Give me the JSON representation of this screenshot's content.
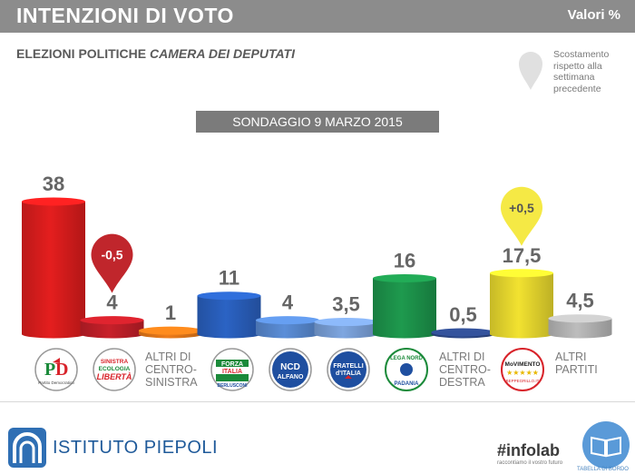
{
  "header": {
    "title": "INTENZIONI DI VOTO",
    "unit_label": "Valori %"
  },
  "subtitle": {
    "main": "ELEZIONI POLITICHE",
    "emphasis": "CAMERA DEI DEPUTATI"
  },
  "legend": {
    "pin_text": "Scostamento rispetto alla settimana precedente",
    "pin_color": "#e0e0e0"
  },
  "poll_date": "SONDAGGIO 9 MARZO 2015",
  "chart_data": {
    "type": "bar",
    "categories": [
      "PD",
      "SEL",
      "ALTRI DI CENTRO-SINISTRA",
      "FORZA ITALIA",
      "NCD - ALFANO",
      "FRATELLI D'ITALIA",
      "LEGA NORD",
      "ALTRI DI CENTRO-DESTRA",
      "MOVIMENTO 5 STELLE",
      "ALTRI PARTITI"
    ],
    "values": [
      38,
      4,
      1,
      11,
      4,
      3.5,
      16,
      0.5,
      17.5,
      4.5
    ],
    "value_labels": [
      "38",
      "4",
      "1",
      "11",
      "4",
      "3,5",
      "16",
      "0,5",
      "17,5",
      "4,5"
    ],
    "colors": [
      "#e41e1e",
      "#c8202a",
      "#ef7d1a",
      "#2b63c4",
      "#5b8ed8",
      "#7ea6e0",
      "#1e9a4e",
      "#2e4a8c",
      "#f2e230",
      "#bdbdbd"
    ],
    "changes": [
      {
        "index": 1,
        "label": "-0,5",
        "color": "#c0262c"
      },
      {
        "index": 8,
        "label": "+0,5",
        "color": "#f5e945"
      }
    ],
    "ylim": [
      0,
      38
    ]
  },
  "labels": {
    "altri_cs": [
      "ALTRI DI",
      "CENTRO-",
      "SINISTRA"
    ],
    "altri_cd": [
      "ALTRI DI",
      "CENTRO-",
      "DESTRA"
    ],
    "altri_partiti": [
      "ALTRI",
      "PARTITI"
    ]
  },
  "logos": {
    "pd": {
      "text": "Partito Democratico"
    },
    "sel": {
      "lines": [
        "SINISTRA",
        "ECOLOGIA",
        "LIBERTÀ"
      ]
    },
    "fi": {
      "lines": [
        "FORZA",
        "ITALIA",
        "BERLUSCONI"
      ]
    },
    "ncd": {
      "lines": [
        "NCD",
        "ALFANO"
      ]
    },
    "fdi": {
      "lines": [
        "FRATELLI",
        "d'ITALIA"
      ]
    },
    "lega": {
      "lines": [
        "LEGA NORD",
        "PADANIA"
      ]
    },
    "m5s": {
      "lines": [
        "MoVIMENTO",
        "BEPPEGRILLO.IT"
      ]
    }
  },
  "footer": {
    "piepoli": "ISTITUTO PIEPOLI",
    "infolab": "#infolab",
    "infolab_sub": "raccontiamo il vostro futuro",
    "book_sub": "TABELLA DI BORDO"
  }
}
